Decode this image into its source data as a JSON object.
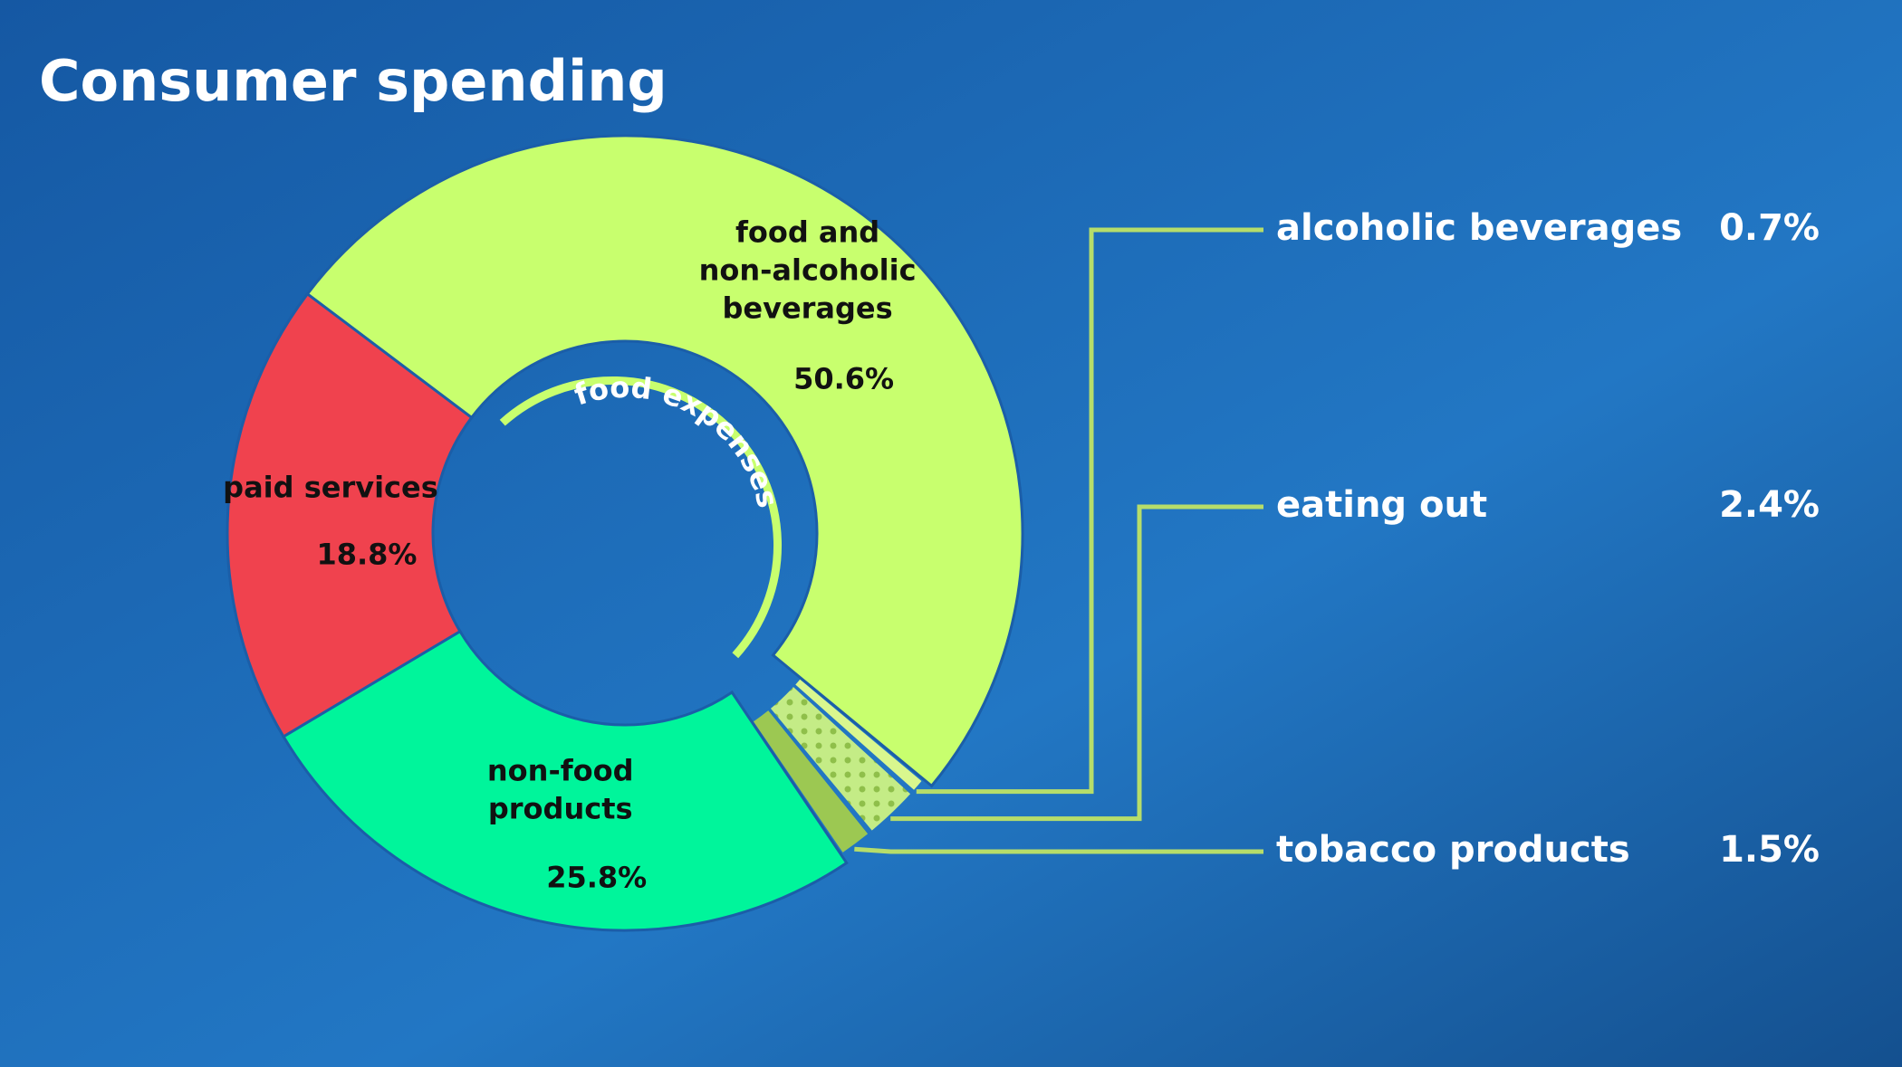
{
  "chart_data": {
    "type": "pie",
    "title": "Consumer spending",
    "annotation": "food expenses",
    "categories": [
      "food and non-alcoholic beverages",
      "alcoholic beverages",
      "eating out",
      "tobacco products",
      "non-food products",
      "paid services"
    ],
    "values": [
      50.6,
      0.7,
      2.4,
      1.5,
      25.8,
      18.8
    ],
    "value_labels": [
      "50.6%",
      "0.7%",
      "2.4%",
      "1.5%",
      "25.8%",
      "18.8%"
    ],
    "colors": [
      "#c8ff6e",
      "#d9f78e",
      "#c4ec86",
      "#9cc852",
      "#00f59b",
      "#f0424e"
    ]
  }
}
